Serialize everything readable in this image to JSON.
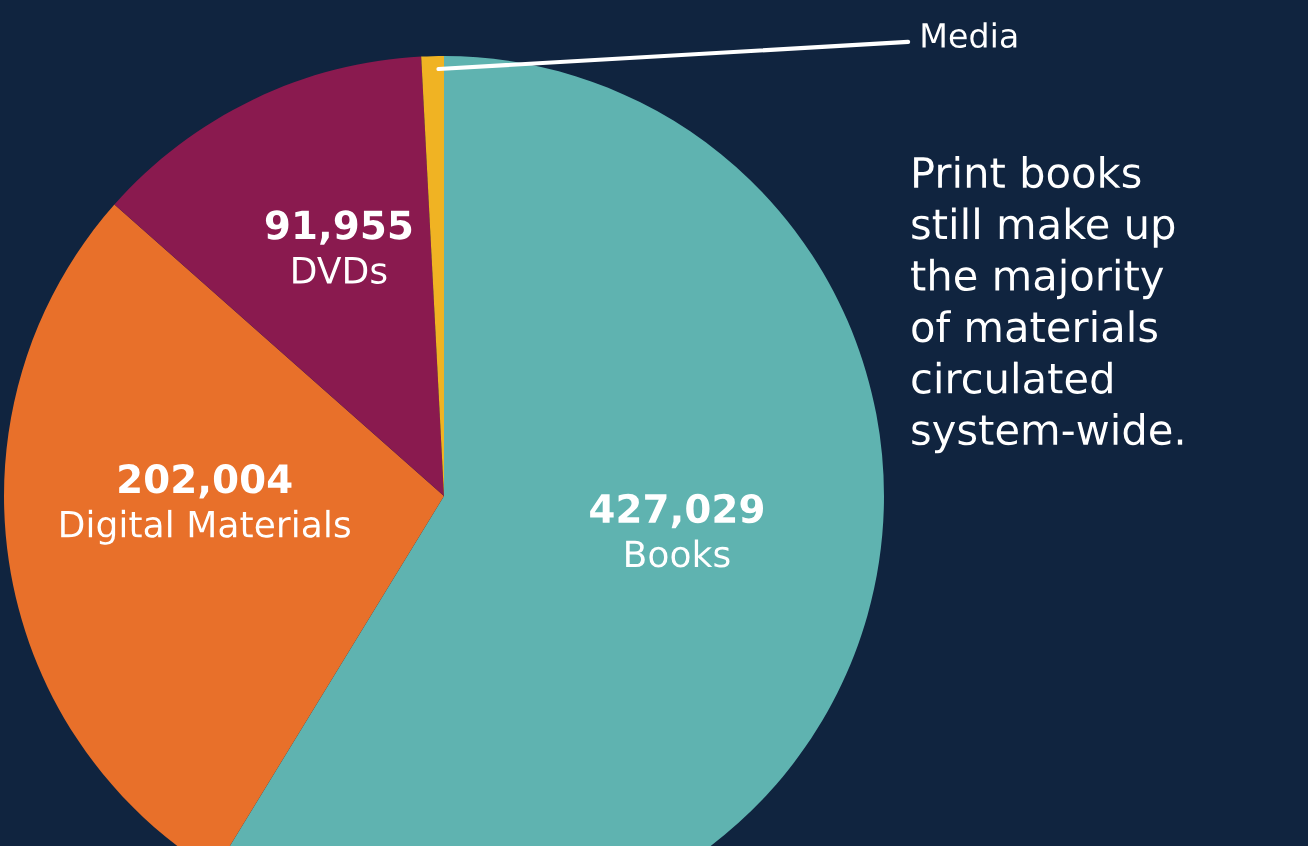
{
  "chart_data": {
    "type": "pie",
    "categories": [
      "Books",
      "Digital Materials",
      "DVDs",
      "Media"
    ],
    "values": [
      427029,
      202004,
      91955,
      6000
    ],
    "value_labels": [
      "427,029",
      "202,004",
      "91,955",
      null
    ],
    "colors": [
      "#5fb3b0",
      "#e8702a",
      "#8a1a4f",
      "#f0b323"
    ],
    "annotations": [
      "Print books\nstill make up\nthe majority\nof materials\ncirculated\nsystem-wide."
    ],
    "legend": false
  }
}
